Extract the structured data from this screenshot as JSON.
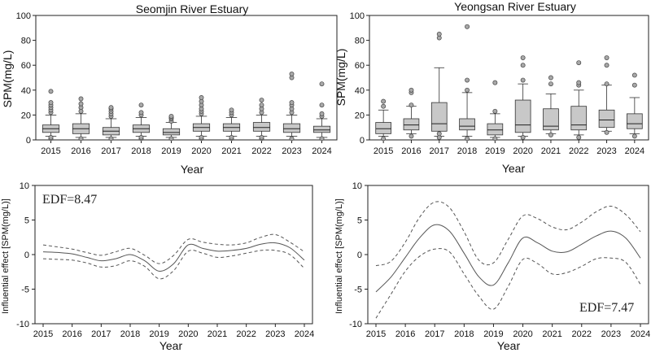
{
  "chart_data": [
    {
      "type": "box",
      "title": "Seomjin River Estuary",
      "xlabel": "Year",
      "ylabel": "SPM(mg/L)",
      "ylim": [
        0,
        100
      ],
      "yticks": [
        0,
        20,
        40,
        60,
        80,
        100
      ],
      "categories": [
        "2015",
        "2016",
        "2017",
        "2018",
        "2019",
        "2020",
        "2021",
        "2022",
        "2023",
        "2024"
      ],
      "boxes": [
        {
          "whislo": 3,
          "q1": 6,
          "med": 9,
          "q3": 12,
          "whishi": 20,
          "fliers": [
            1,
            2,
            22,
            24,
            26,
            28,
            30,
            39
          ]
        },
        {
          "whislo": 2,
          "q1": 5,
          "med": 9,
          "q3": 13,
          "whishi": 21,
          "fliers": [
            1,
            23,
            26,
            29,
            33
          ]
        },
        {
          "whislo": 2,
          "q1": 4,
          "med": 7,
          "q3": 10,
          "whishi": 17,
          "fliers": [
            1,
            19,
            21,
            23,
            25,
            26
          ]
        },
        {
          "whislo": 3,
          "q1": 6,
          "med": 9,
          "q3": 12,
          "whishi": 18,
          "fliers": [
            1,
            2,
            20,
            22,
            28
          ]
        },
        {
          "whislo": 2,
          "q1": 4,
          "med": 6,
          "q3": 9,
          "whishi": 14,
          "fliers": [
            1,
            15,
            17,
            18,
            19
          ]
        },
        {
          "whislo": 3,
          "q1": 7,
          "med": 10,
          "q3": 13,
          "whishi": 19,
          "fliers": [
            1,
            2,
            21,
            23,
            25,
            28,
            31,
            34
          ]
        },
        {
          "whislo": 3,
          "q1": 7,
          "med": 10,
          "q3": 13,
          "whishi": 18,
          "fliers": [
            1,
            2,
            20,
            22,
            24
          ]
        },
        {
          "whislo": 3,
          "q1": 7,
          "med": 10,
          "q3": 14,
          "whishi": 20,
          "fliers": [
            1,
            2,
            22,
            25,
            28,
            32
          ]
        },
        {
          "whislo": 3,
          "q1": 6,
          "med": 9,
          "q3": 13,
          "whishi": 20,
          "fliers": [
            1,
            22,
            25,
            28,
            30,
            50,
            53
          ]
        },
        {
          "whislo": 2,
          "q1": 6,
          "med": 8,
          "q3": 11,
          "whishi": 17,
          "fliers": [
            1,
            19,
            21,
            28,
            45
          ]
        }
      ]
    },
    {
      "type": "box",
      "title": "Yeongsan River Estuary",
      "xlabel": "Year",
      "ylabel": "SPM(mg/L)",
      "ylim": [
        0,
        100
      ],
      "yticks": [
        0,
        20,
        40,
        60,
        80,
        100
      ],
      "categories": [
        "2015",
        "2016",
        "2017",
        "2018",
        "2019",
        "2020",
        "2021",
        "2022",
        "2023",
        "2024"
      ],
      "boxes": [
        {
          "whislo": 3,
          "q1": 5,
          "med": 9,
          "q3": 14,
          "whishi": 24,
          "fliers": [
            1,
            27,
            31
          ]
        },
        {
          "whislo": 5,
          "q1": 8,
          "med": 12,
          "q3": 17,
          "whishi": 27,
          "fliers": [
            3,
            28,
            38,
            40
          ]
        },
        {
          "whislo": 3,
          "q1": 7,
          "med": 13,
          "q3": 30,
          "whishi": 58,
          "fliers": [
            2,
            5,
            82,
            85
          ]
        },
        {
          "whislo": 3,
          "q1": 8,
          "med": 11,
          "q3": 17,
          "whishi": 38,
          "fliers": [
            1,
            40,
            48,
            91
          ]
        },
        {
          "whislo": 2,
          "q1": 4,
          "med": 8,
          "q3": 13,
          "whishi": 21,
          "fliers": [
            1,
            23,
            46
          ]
        },
        {
          "whislo": 3,
          "q1": 6,
          "med": 12,
          "q3": 32,
          "whishi": 45,
          "fliers": [
            2,
            48,
            60,
            66
          ]
        },
        {
          "whislo": 5,
          "q1": 8,
          "med": 11,
          "q3": 25,
          "whishi": 37,
          "fliers": [
            4,
            45,
            50
          ]
        },
        {
          "whislo": 4,
          "q1": 8,
          "med": 12,
          "q3": 27,
          "whishi": 40,
          "fliers": [
            2,
            44,
            46,
            62
          ]
        },
        {
          "whislo": 7,
          "q1": 10,
          "med": 16,
          "q3": 24,
          "whishi": 44,
          "fliers": [
            6,
            45,
            60,
            66
          ]
        },
        {
          "whislo": 5,
          "q1": 9,
          "med": 13,
          "q3": 21,
          "whishi": 34,
          "fliers": [
            3,
            44,
            52
          ]
        }
      ]
    },
    {
      "type": "line",
      "title": "",
      "xlabel": "Year",
      "ylabel": "Influential effect [SPM(mg/L)]",
      "annotation": "EDF=8.47",
      "xlim": [
        2015,
        2024
      ],
      "ylim": [
        -10,
        10
      ],
      "xticks": [
        "2015",
        "2016",
        "2017",
        "2018",
        "2019",
        "2020",
        "2021",
        "2022",
        "2023",
        "2024"
      ],
      "yticks": [
        -10,
        -5,
        0,
        5,
        10
      ],
      "x": [
        2015,
        2015.5,
        2016,
        2016.5,
        2017,
        2017.5,
        2018,
        2018.5,
        2019,
        2019.5,
        2020,
        2020.5,
        2021,
        2021.5,
        2022,
        2022.5,
        2023,
        2023.5,
        2024
      ],
      "series": [
        {
          "name": "fit",
          "style": "solid",
          "values": [
            0.4,
            0.3,
            0.1,
            -0.4,
            -0.9,
            -0.6,
            0.0,
            -0.9,
            -2.4,
            -1.3,
            1.4,
            0.9,
            0.5,
            0.6,
            0.9,
            1.5,
            1.7,
            1.0,
            -0.8
          ]
        },
        {
          "name": "upper",
          "style": "dashed",
          "values": [
            1.4,
            1.1,
            0.8,
            0.3,
            -0.1,
            0.4,
            0.9,
            -0.1,
            -1.3,
            -0.1,
            2.2,
            1.8,
            1.5,
            1.4,
            1.7,
            2.5,
            2.9,
            1.8,
            0.4
          ]
        },
        {
          "name": "lower",
          "style": "dashed",
          "values": [
            -0.6,
            -0.7,
            -0.8,
            -1.2,
            -1.8,
            -1.6,
            -0.9,
            -1.7,
            -3.5,
            -2.3,
            0.5,
            0.2,
            -0.4,
            -0.2,
            0.2,
            0.6,
            0.6,
            0.0,
            -2.0
          ]
        }
      ]
    },
    {
      "type": "line",
      "title": "",
      "xlabel": "Year",
      "ylabel": "Influential effect [SPM(mg/L)]",
      "annotation": "EDF=7.47",
      "xlim": [
        2015,
        2024
      ],
      "ylim": [
        -10,
        10
      ],
      "xticks": [
        "2015",
        "2016",
        "2017",
        "2018",
        "2019",
        "2020",
        "2021",
        "2022",
        "2023",
        "2024"
      ],
      "yticks": [
        -10,
        -5,
        0,
        5,
        10
      ],
      "x": [
        2015,
        2015.5,
        2016,
        2016.5,
        2017,
        2017.5,
        2018,
        2018.5,
        2019,
        2019.5,
        2020,
        2020.5,
        2021,
        2021.5,
        2022,
        2022.5,
        2023,
        2023.5,
        2024
      ],
      "series": [
        {
          "name": "fit",
          "style": "solid",
          "values": [
            -5.4,
            -3.3,
            -0.4,
            2.5,
            4.3,
            3.4,
            0.2,
            -3.2,
            -4.4,
            -1.2,
            2.4,
            1.7,
            0.5,
            0.4,
            1.5,
            2.7,
            3.4,
            2.4,
            -0.5
          ]
        },
        {
          "name": "upper",
          "style": "dashed",
          "values": [
            -1.6,
            -1.0,
            1.8,
            5.5,
            7.6,
            6.8,
            3.3,
            -0.8,
            -1.2,
            2.2,
            5.6,
            5.2,
            4.0,
            3.6,
            4.7,
            6.2,
            7.0,
            5.8,
            3.3
          ]
        },
        {
          "name": "lower",
          "style": "dashed",
          "values": [
            -9.2,
            -5.8,
            -2.4,
            -0.2,
            0.8,
            0.4,
            -2.8,
            -6.0,
            -7.9,
            -4.6,
            -0.7,
            -1.3,
            -2.8,
            -2.6,
            -1.7,
            -0.6,
            -0.5,
            -1.1,
            -4.3
          ]
        }
      ]
    }
  ],
  "colors": {
    "box_fill": "#c8c8c8",
    "line": "#555555",
    "axis": "#222222",
    "flier_fill": "#a8a8a8"
  }
}
